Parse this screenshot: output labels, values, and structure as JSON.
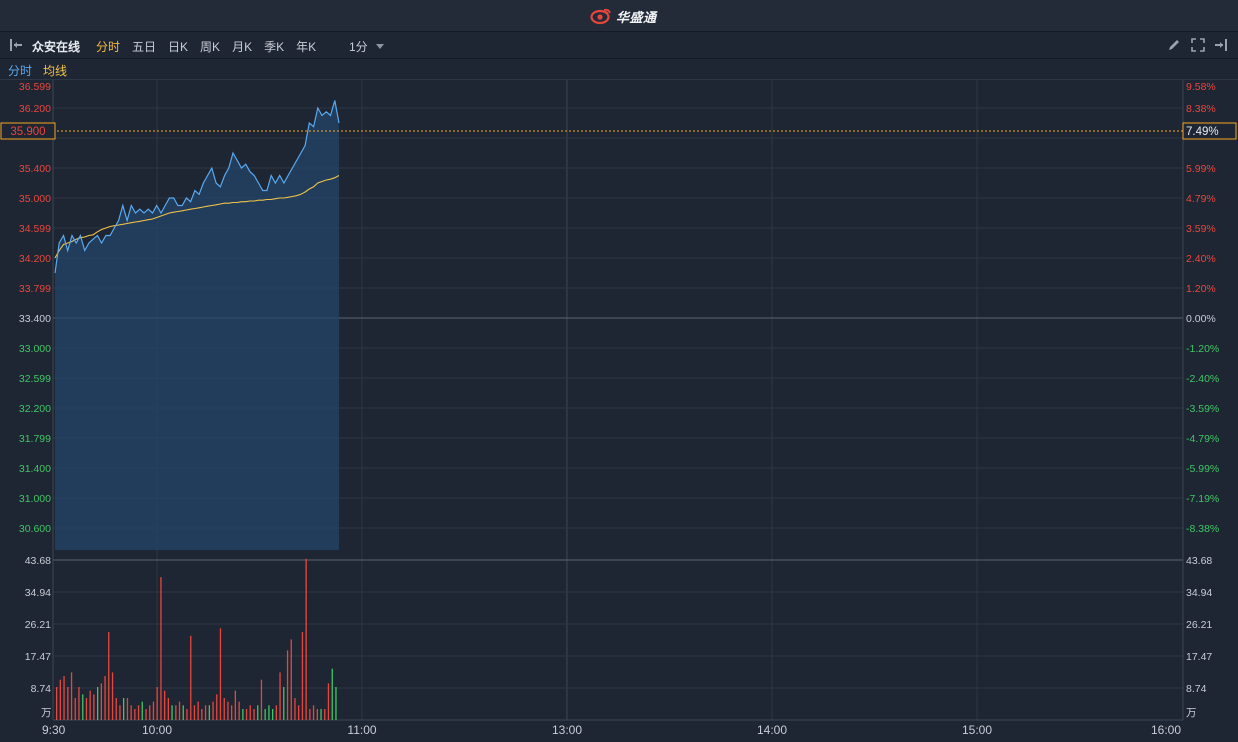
{
  "brand": {
    "name": "华盛通"
  },
  "toolbar": {
    "stock_name": "众安在线",
    "tabs": [
      "分时",
      "五日",
      "日K",
      "周K",
      "月K",
      "季K",
      "年K"
    ],
    "active_tab": "分时",
    "minute": "1分"
  },
  "legend": {
    "line1": "分时",
    "line2": "均线"
  },
  "colors": {
    "up": "#e8463d",
    "down": "#3fc564",
    "price_line": "#5aa9f0",
    "avg_line": "#f0c24a",
    "marker": "#f5a623"
  },
  "price_panel": {
    "left_ticks": [
      "36.599",
      "36.200",
      "35.400",
      "35.000",
      "34.599",
      "34.200",
      "33.799",
      "33.400",
      "33.000",
      "32.599",
      "32.200",
      "31.799",
      "31.400",
      "31.000",
      "30.600"
    ],
    "right_ticks": [
      "9.58%",
      "8.38%",
      "5.99%",
      "4.79%",
      "3.59%",
      "2.40%",
      "1.20%",
      "0.00%",
      "-1.20%",
      "-2.40%",
      "-3.59%",
      "-4.79%",
      "-5.99%",
      "-7.19%",
      "-8.38%"
    ],
    "current_price": "35.900",
    "current_pct": "7.49%"
  },
  "volume_panel": {
    "ticks": [
      "43.68",
      "34.94",
      "26.21",
      "17.47",
      "8.74"
    ],
    "unit": "万"
  },
  "time_axis": [
    "9:30",
    "10:00",
    "11:00",
    "13:00",
    "14:00",
    "15:00",
    "16:00"
  ],
  "chart_data": {
    "type": "line",
    "prev_close": 33.4,
    "ylim": [
      30.2,
      36.6
    ],
    "volume_ylim": [
      0,
      43.68
    ],
    "price": [
      34.0,
      34.4,
      34.5,
      34.3,
      34.5,
      34.4,
      34.5,
      34.3,
      34.4,
      34.45,
      34.5,
      34.4,
      34.5,
      34.5,
      34.6,
      34.7,
      34.9,
      34.7,
      34.9,
      34.8,
      34.85,
      34.8,
      34.85,
      34.8,
      34.9,
      34.8,
      34.9,
      35.0,
      35.0,
      34.9,
      34.9,
      35.0,
      34.95,
      35.1,
      35.05,
      35.2,
      35.3,
      35.4,
      35.2,
      35.15,
      35.3,
      35.4,
      35.6,
      35.5,
      35.4,
      35.45,
      35.35,
      35.3,
      35.2,
      35.1,
      35.1,
      35.3,
      35.2,
      35.3,
      35.2,
      35.3,
      35.4,
      35.5,
      35.6,
      35.7,
      36.0,
      35.95,
      36.2,
      36.1,
      36.15,
      36.1,
      36.3,
      36.0
    ],
    "avg": [
      34.2,
      34.3,
      34.38,
      34.4,
      34.42,
      34.45,
      34.47,
      34.48,
      34.5,
      34.51,
      34.55,
      34.58,
      34.6,
      34.62,
      34.63,
      34.64,
      34.65,
      34.66,
      34.67,
      34.68,
      34.69,
      34.7,
      34.71,
      34.72,
      34.74,
      34.76,
      34.78,
      34.8,
      34.81,
      34.82,
      34.83,
      34.84,
      34.85,
      34.86,
      34.87,
      34.88,
      34.89,
      34.9,
      34.91,
      34.92,
      34.93,
      34.93,
      34.94,
      34.94,
      34.95,
      34.95,
      34.96,
      34.96,
      34.97,
      34.97,
      34.98,
      34.98,
      34.99,
      35.0,
      35.0,
      35.01,
      35.02,
      35.03,
      35.05,
      35.08,
      35.12,
      35.15,
      35.2,
      35.22,
      35.24,
      35.25,
      35.27,
      35.3
    ],
    "volume": [
      9,
      11,
      12,
      9,
      13,
      6,
      9,
      7,
      6,
      8,
      7,
      9,
      10,
      12,
      24,
      13,
      6,
      4,
      6,
      6,
      4,
      3,
      4,
      5,
      3,
      4,
      5,
      9,
      39,
      8,
      6,
      4,
      4,
      5,
      4,
      3,
      23,
      4,
      5,
      3,
      4,
      4,
      5,
      7,
      25,
      6,
      5,
      4,
      8,
      5,
      3,
      3,
      4,
      3,
      4,
      11,
      3,
      4,
      3,
      4,
      13,
      9,
      19,
      22,
      6,
      4,
      24,
      44,
      3,
      4,
      3,
      3,
      3,
      10,
      14,
      9
    ],
    "volume_up": [
      true,
      true,
      true,
      true,
      true,
      true,
      true,
      false,
      true,
      true,
      true,
      false,
      true,
      true,
      true,
      true,
      true,
      true,
      false,
      true,
      true,
      true,
      true,
      false,
      true,
      true,
      true,
      true,
      true,
      true,
      true,
      false,
      true,
      true,
      false,
      true,
      true,
      true,
      true,
      true,
      true,
      false,
      true,
      true,
      true,
      true,
      true,
      true,
      true,
      true,
      false,
      true,
      true,
      true,
      false,
      true,
      false,
      false,
      false,
      true,
      true,
      false,
      true,
      true,
      true,
      true,
      true,
      true,
      true,
      true,
      true,
      false,
      true,
      true,
      false,
      false
    ]
  }
}
